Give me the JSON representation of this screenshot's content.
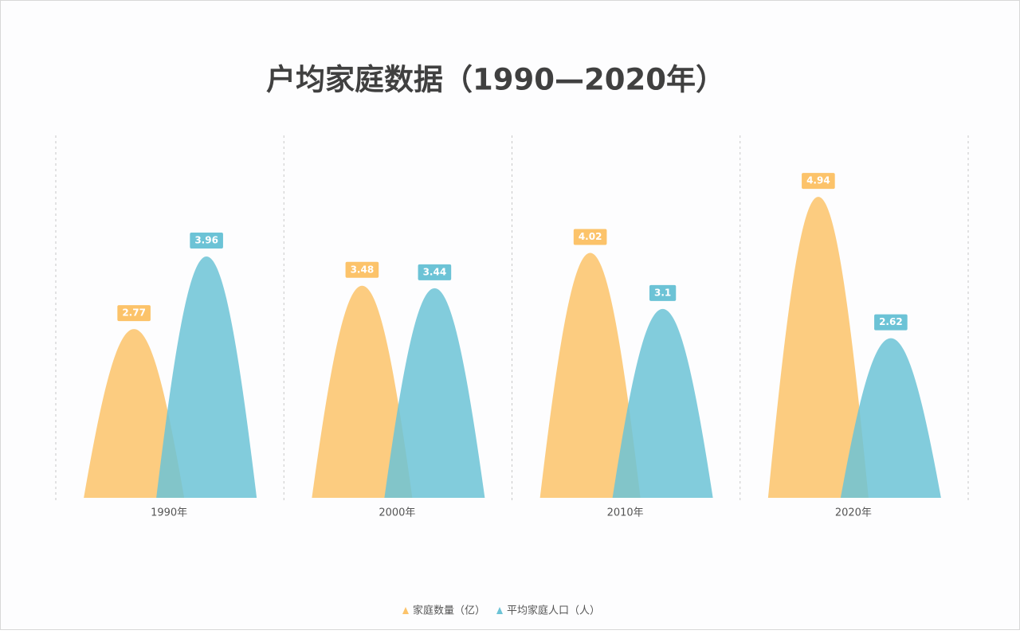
{
  "chart_data": {
    "type": "peak-bar",
    "title": "户均家庭数据（1990—2020年）",
    "categories": [
      "1990年",
      "2000年",
      "2010年",
      "2020年"
    ],
    "series": [
      {
        "name": "家庭数量（亿）",
        "color": "#fcc36a",
        "values": [
          2.77,
          3.48,
          4.02,
          4.94
        ]
      },
      {
        "name": "平均家庭人口（人）",
        "color": "#6cc3d6",
        "values": [
          3.96,
          3.44,
          3.1,
          2.62
        ]
      }
    ],
    "ylim": [
      0,
      6
    ],
    "legend": "bottom"
  }
}
